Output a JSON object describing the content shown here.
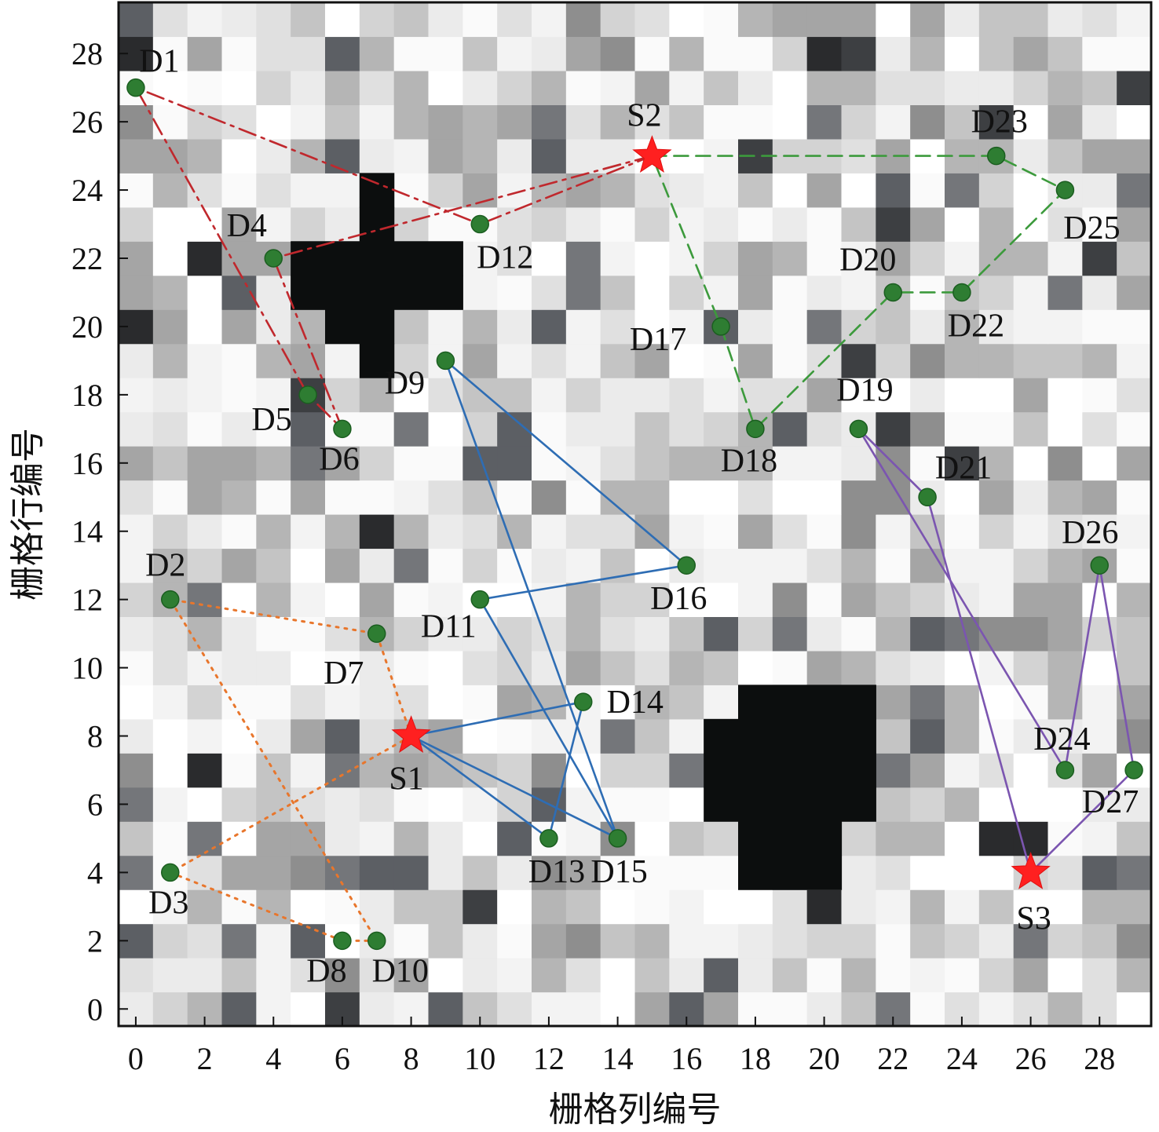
{
  "chart_data": {
    "type": "scatter",
    "xlabel": "栅格列编号",
    "ylabel": "栅格行编号",
    "xlim": [
      -0.5,
      29.5
    ],
    "ylim": [
      -0.5,
      29.5
    ],
    "xticks": [
      "0",
      "2",
      "4",
      "6",
      "8",
      "10",
      "12",
      "14",
      "16",
      "18",
      "20",
      "22",
      "24",
      "26",
      "28"
    ],
    "yticks": [
      "0",
      "2",
      "4",
      "6",
      "8",
      "10",
      "12",
      "14",
      "16",
      "18",
      "20",
      "22",
      "24",
      "26",
      "28"
    ],
    "grid_size": 30,
    "grid_seed": 7,
    "obstacles": [
      {
        "cells_rows": [
          [
            22,
            5,
            9
          ],
          [
            21,
            5,
            9
          ],
          [
            23,
            7,
            7
          ],
          [
            24,
            7,
            7
          ],
          [
            20,
            6,
            7
          ],
          [
            19,
            7,
            7
          ]
        ]
      },
      {
        "cells_rows": [
          [
            9,
            18,
            21
          ],
          [
            8,
            17,
            21
          ],
          [
            7,
            17,
            21
          ],
          [
            6,
            17,
            21
          ],
          [
            5,
            18,
            20
          ],
          [
            4,
            18,
            20
          ]
        ]
      }
    ],
    "stations": [
      {
        "label": "S1",
        "x": 8,
        "y": 8,
        "color": "#ff2020"
      },
      {
        "label": "S2",
        "x": 15,
        "y": 25,
        "color": "#ff2020"
      },
      {
        "label": "S3",
        "x": 26,
        "y": 4,
        "color": "#ff2020"
      }
    ],
    "demand_points": [
      {
        "label": "D1",
        "x": 0,
        "y": 27
      },
      {
        "label": "D2",
        "x": 1,
        "y": 12
      },
      {
        "label": "D3",
        "x": 1,
        "y": 4
      },
      {
        "label": "D4",
        "x": 4,
        "y": 22
      },
      {
        "label": "D5",
        "x": 5,
        "y": 18
      },
      {
        "label": "D6",
        "x": 6,
        "y": 17
      },
      {
        "label": "D7",
        "x": 7,
        "y": 11
      },
      {
        "label": "D8",
        "x": 6,
        "y": 2
      },
      {
        "label": "D9",
        "x": 9,
        "y": 19
      },
      {
        "label": "D10",
        "x": 7,
        "y": 2
      },
      {
        "label": "D11",
        "x": 10,
        "y": 12
      },
      {
        "label": "D12",
        "x": 10,
        "y": 23
      },
      {
        "label": "D13",
        "x": 12,
        "y": 5
      },
      {
        "label": "D14",
        "x": 13,
        "y": 9
      },
      {
        "label": "D15",
        "x": 14,
        "y": 5
      },
      {
        "label": "D16",
        "x": 16,
        "y": 13
      },
      {
        "label": "D17",
        "x": 17,
        "y": 20
      },
      {
        "label": "D18",
        "x": 18,
        "y": 17
      },
      {
        "label": "D19",
        "x": 21,
        "y": 17
      },
      {
        "label": "D20",
        "x": 22,
        "y": 21
      },
      {
        "label": "D21",
        "x": 23,
        "y": 15
      },
      {
        "label": "D22",
        "x": 24,
        "y": 21
      },
      {
        "label": "D23",
        "x": 25,
        "y": 25
      },
      {
        "label": "D24",
        "x": 27,
        "y": 7
      },
      {
        "label": "D25",
        "x": 27,
        "y": 24
      },
      {
        "label": "D26",
        "x": 28,
        "y": 13
      },
      {
        "label": "D27",
        "x": 29,
        "y": 7
      }
    ],
    "routes": [
      {
        "color": "#c0282d",
        "dash": "dashdot",
        "paths": [
          [
            "S2",
            "D4",
            "D6",
            "D5",
            "D1",
            "D12",
            "S2"
          ]
        ]
      },
      {
        "color": "#e8762c",
        "dash": "dotted",
        "paths": [
          [
            "S1",
            "D7",
            "D2",
            "D10",
            "D8",
            "D3",
            "S1"
          ]
        ]
      },
      {
        "color": "#2e6db4",
        "dash": "solid",
        "paths": [
          [
            "S1",
            "D15",
            "D9",
            "D16",
            "D11",
            "D15",
            "S1"
          ],
          [
            "S1",
            "D13",
            "D14",
            "S1"
          ]
        ]
      },
      {
        "color": "#3c9a3c",
        "dash": "dashed",
        "paths": [
          [
            "S2",
            "D23",
            "D25",
            "D22",
            "D20",
            "D18",
            "D17",
            "S2"
          ]
        ]
      },
      {
        "color": "#7b55b0",
        "dash": "solid",
        "paths": [
          [
            "S3",
            "D21",
            "D19",
            "D24",
            "D26",
            "D27",
            "S3"
          ]
        ]
      }
    ],
    "point_color": "#2e7d32"
  }
}
